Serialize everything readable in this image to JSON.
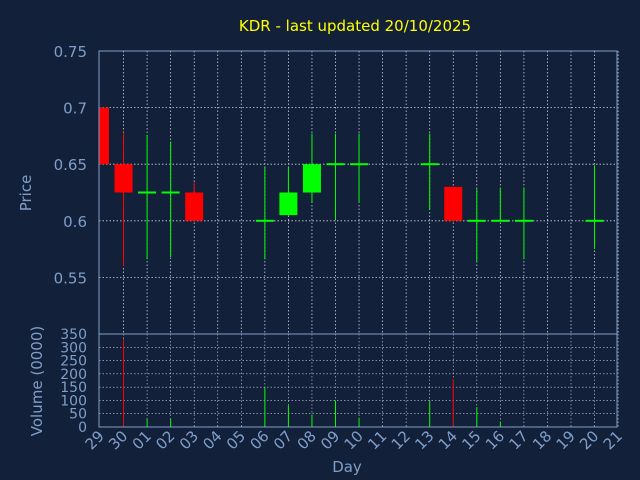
{
  "colors": {
    "background": "#13203a",
    "plot_border": "#7f9fc8",
    "grid": "#c8d0dc",
    "title": "#ffff00",
    "axis_text": "#7f9fc8",
    "up": "#00ff00",
    "down": "#ff0000"
  },
  "chart_data": [
    {
      "type": "candlestick",
      "title": "KDR - last updated 20/10/2025",
      "ylabel": "Price",
      "ylim": [
        0.5,
        0.75
      ],
      "yticks": [
        "0.55",
        "0.6",
        "0.65",
        "0.7",
        "0.75"
      ],
      "grid": true,
      "x": [
        "29",
        "30",
        "01",
        "02",
        "03",
        "04",
        "05",
        "06",
        "07",
        "08",
        "09",
        "10",
        "11",
        "12",
        "13",
        "14",
        "15",
        "16",
        "17",
        "18",
        "19",
        "20",
        "21"
      ],
      "candles": [
        {
          "x": "29",
          "open": 0.7,
          "high": 0.7,
          "low": 0.65,
          "close": 0.65
        },
        {
          "x": "30",
          "open": 0.65,
          "high": 0.678,
          "low": 0.56,
          "close": 0.625
        },
        {
          "x": "01",
          "open": 0.625,
          "high": 0.676,
          "low": 0.566,
          "close": 0.625
        },
        {
          "x": "02",
          "open": 0.625,
          "high": 0.67,
          "low": 0.568,
          "close": 0.625
        },
        {
          "x": "03",
          "open": 0.625,
          "high": 0.634,
          "low": 0.6,
          "close": 0.6
        },
        {
          "x": "06",
          "open": 0.6,
          "high": 0.647,
          "low": 0.566,
          "close": 0.6
        },
        {
          "x": "07",
          "open": 0.605,
          "high": 0.647,
          "low": 0.605,
          "close": 0.625
        },
        {
          "x": "08",
          "open": 0.625,
          "high": 0.677,
          "low": 0.617,
          "close": 0.65
        },
        {
          "x": "09",
          "open": 0.65,
          "high": 0.677,
          "low": 0.601,
          "close": 0.65
        },
        {
          "x": "10",
          "open": 0.65,
          "high": 0.677,
          "low": 0.616,
          "close": 0.65
        },
        {
          "x": "13",
          "open": 0.65,
          "high": 0.677,
          "low": 0.61,
          "close": 0.65
        },
        {
          "x": "14",
          "open": 0.63,
          "high": 0.63,
          "low": 0.6,
          "close": 0.6
        },
        {
          "x": "15",
          "open": 0.6,
          "high": 0.628,
          "low": 0.564,
          "close": 0.6
        },
        {
          "x": "16",
          "open": 0.6,
          "high": 0.629,
          "low": 0.6,
          "close": 0.6
        },
        {
          "x": "17",
          "open": 0.6,
          "high": 0.629,
          "low": 0.566,
          "close": 0.6
        },
        {
          "x": "20",
          "open": 0.6,
          "high": 0.649,
          "low": 0.575,
          "close": 0.6
        }
      ]
    },
    {
      "type": "bar",
      "ylabel": "Volume (0000)",
      "xlabel": "Day",
      "ylim": [
        0,
        350
      ],
      "yticks": [
        "0",
        "50",
        "100",
        "150",
        "200",
        "250",
        "300",
        "350"
      ],
      "grid": true,
      "categories": [
        "29",
        "30",
        "01",
        "02",
        "03",
        "04",
        "05",
        "06",
        "07",
        "08",
        "09",
        "10",
        "11",
        "12",
        "13",
        "14",
        "15",
        "16",
        "17",
        "18",
        "19",
        "20",
        "21"
      ],
      "bars": [
        {
          "x": "29",
          "value": 0,
          "color": "down"
        },
        {
          "x": "30",
          "value": 330,
          "color": "down"
        },
        {
          "x": "01",
          "value": 30,
          "color": "up"
        },
        {
          "x": "02",
          "value": 30,
          "color": "up"
        },
        {
          "x": "03",
          "value": 0,
          "color": "down"
        },
        {
          "x": "06",
          "value": 150,
          "color": "up"
        },
        {
          "x": "07",
          "value": 80,
          "color": "up"
        },
        {
          "x": "08",
          "value": 45,
          "color": "up"
        },
        {
          "x": "09",
          "value": 100,
          "color": "up"
        },
        {
          "x": "10",
          "value": 35,
          "color": "up"
        },
        {
          "x": "13",
          "value": 95,
          "color": "up"
        },
        {
          "x": "14",
          "value": 180,
          "color": "down"
        },
        {
          "x": "15",
          "value": 75,
          "color": "up"
        },
        {
          "x": "16",
          "value": 20,
          "color": "up"
        },
        {
          "x": "17",
          "value": 0,
          "color": "up"
        },
        {
          "x": "20",
          "value": 0,
          "color": "up"
        }
      ]
    }
  ]
}
